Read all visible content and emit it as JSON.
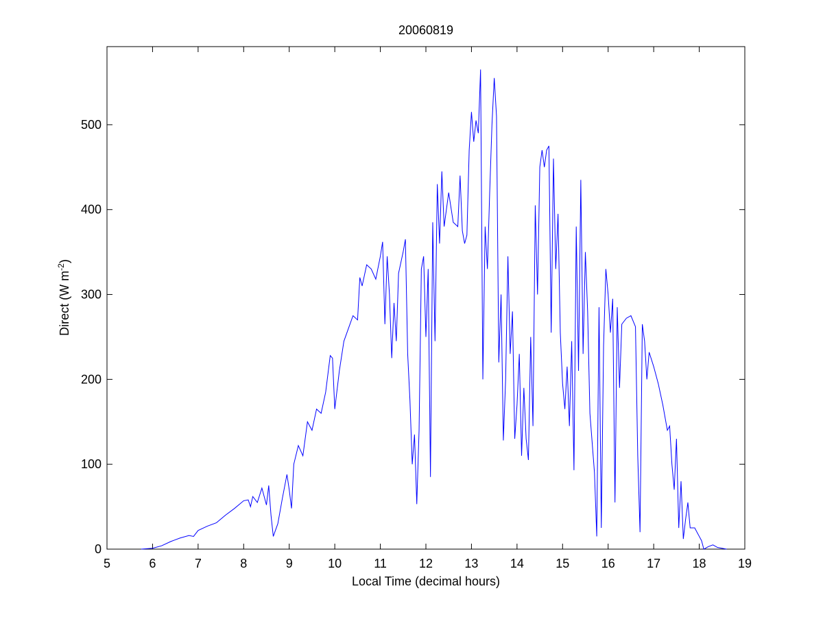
{
  "chart_data": {
    "type": "line",
    "title": "20060819",
    "xlabel": "Local Time (decimal hours)",
    "ylabel": {
      "text": "Direct (W m",
      "superscript": "-2",
      "suffix": ")"
    },
    "xlim": [
      5,
      19
    ],
    "xticks": [
      5,
      6,
      7,
      8,
      9,
      10,
      11,
      12,
      13,
      14,
      15,
      16,
      17,
      18,
      19
    ],
    "ylim": [
      0,
      592
    ],
    "yticks": [
      0,
      100,
      200,
      300,
      400,
      500
    ],
    "x": [
      5.75,
      6.0,
      6.2,
      6.4,
      6.6,
      6.8,
      6.9,
      7.0,
      7.2,
      7.4,
      7.6,
      7.8,
      8.0,
      8.1,
      8.15,
      8.2,
      8.3,
      8.4,
      8.5,
      8.55,
      8.6,
      8.65,
      8.75,
      8.85,
      8.95,
      9.0,
      9.05,
      9.1,
      9.2,
      9.3,
      9.4,
      9.5,
      9.6,
      9.7,
      9.8,
      9.9,
      9.95,
      10.0,
      10.1,
      10.2,
      10.3,
      10.4,
      10.5,
      10.55,
      10.6,
      10.7,
      10.8,
      10.9,
      11.0,
      11.05,
      11.1,
      11.15,
      11.2,
      11.25,
      11.3,
      11.35,
      11.4,
      11.5,
      11.55,
      11.6,
      11.65,
      11.7,
      11.75,
      11.8,
      11.85,
      11.9,
      11.95,
      12.0,
      12.05,
      12.1,
      12.15,
      12.2,
      12.25,
      12.3,
      12.35,
      12.4,
      12.5,
      12.6,
      12.7,
      12.75,
      12.8,
      12.85,
      12.9,
      12.95,
      13.0,
      13.05,
      13.1,
      13.15,
      13.2,
      13.25,
      13.3,
      13.35,
      13.4,
      13.45,
      13.5,
      13.55,
      13.6,
      13.65,
      13.7,
      13.75,
      13.8,
      13.85,
      13.9,
      13.95,
      14.0,
      14.05,
      14.1,
      14.15,
      14.2,
      14.25,
      14.3,
      14.35,
      14.4,
      14.45,
      14.5,
      14.55,
      14.6,
      14.65,
      14.7,
      14.75,
      14.8,
      14.85,
      14.9,
      14.95,
      15.0,
      15.05,
      15.1,
      15.15,
      15.2,
      15.25,
      15.3,
      15.35,
      15.4,
      15.45,
      15.5,
      15.55,
      15.6,
      15.7,
      15.75,
      15.8,
      15.85,
      15.9,
      15.95,
      16.0,
      16.05,
      16.1,
      16.15,
      16.2,
      16.25,
      16.3,
      16.4,
      16.5,
      16.6,
      16.65,
      16.7,
      16.75,
      16.8,
      16.85,
      16.9,
      17.0,
      17.1,
      17.2,
      17.3,
      17.35,
      17.4,
      17.45,
      17.5,
      17.55,
      17.6,
      17.65,
      17.7,
      17.75,
      17.8,
      17.9,
      18.0,
      18.05,
      18.1,
      18.2,
      18.3,
      18.4,
      18.6
    ],
    "series": [
      {
        "color": "#0000ff",
        "values": [
          0,
          1,
          4,
          9,
          13,
          16,
          15,
          22,
          27,
          31,
          40,
          48,
          57,
          58,
          50,
          62,
          55,
          72,
          52,
          75,
          40,
          15,
          30,
          60,
          88,
          70,
          48,
          100,
          122,
          110,
          150,
          140,
          165,
          160,
          185,
          228,
          225,
          165,
          210,
          245,
          260,
          275,
          270,
          320,
          310,
          335,
          330,
          318,
          345,
          362,
          265,
          345,
          300,
          225,
          290,
          245,
          325,
          350,
          365,
          230,
          175,
          100,
          135,
          53,
          140,
          330,
          345,
          250,
          330,
          85,
          385,
          245,
          430,
          360,
          445,
          380,
          420,
          385,
          380,
          440,
          375,
          360,
          370,
          470,
          515,
          480,
          505,
          490,
          565,
          200,
          380,
          330,
          420,
          500,
          555,
          510,
          220,
          300,
          128,
          200,
          345,
          230,
          280,
          130,
          170,
          230,
          110,
          190,
          130,
          105,
          250,
          145,
          405,
          300,
          450,
          470,
          450,
          470,
          475,
          255,
          460,
          330,
          395,
          255,
          195,
          165,
          215,
          145,
          245,
          93,
          380,
          210,
          435,
          230,
          350,
          280,
          160,
          90,
          15,
          285,
          25,
          240,
          330,
          300,
          255,
          295,
          55,
          285,
          190,
          265,
          272,
          275,
          262,
          110,
          20,
          265,
          245,
          200,
          232,
          215,
          195,
          170,
          140,
          145,
          100,
          70,
          130,
          25,
          80,
          12,
          35,
          55,
          25,
          25,
          15,
          10,
          0,
          3,
          5,
          2,
          0
        ]
      }
    ]
  }
}
